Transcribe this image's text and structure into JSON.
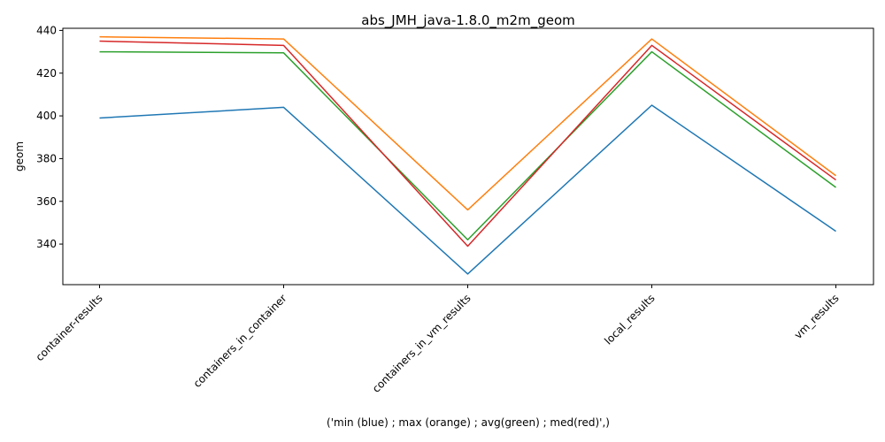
{
  "chart_data": {
    "type": "line",
    "title": "abs_JMH_java-1.8.0_m2m_geom",
    "xlabel": "('min (blue) ; max (orange) ; avg(green) ; med(red)',)",
    "ylabel": "geom",
    "categories": [
      "container-results",
      "containers_in_container",
      "containers_in_vm_results",
      "local_results",
      "vm_results"
    ],
    "ylim": [
      321,
      441
    ],
    "yticks": [
      340,
      360,
      380,
      400,
      420,
      440
    ],
    "grid": false,
    "legend": "none",
    "series": [
      {
        "color": "#1f77b4",
        "values": [
          399,
          404,
          326,
          405,
          346
        ]
      },
      {
        "color": "#ff7f0e",
        "values": [
          437,
          436,
          356,
          436,
          372
        ]
      },
      {
        "color": "#2ca02c",
        "values": [
          430,
          429.5,
          342,
          430,
          366.5
        ]
      },
      {
        "color": "#d62728",
        "values": [
          435,
          433,
          339,
          433,
          370
        ]
      }
    ]
  }
}
